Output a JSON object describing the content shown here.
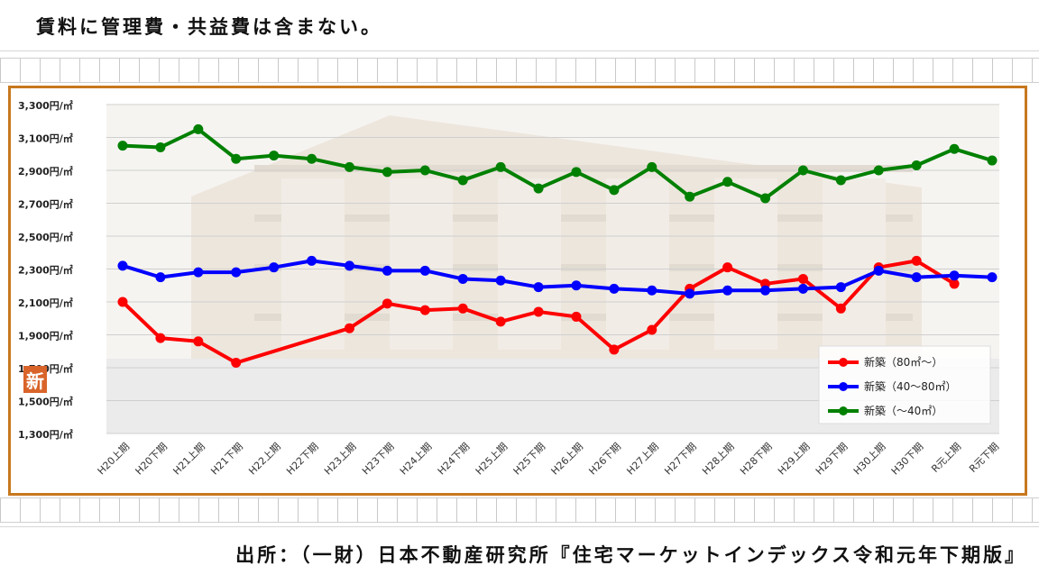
{
  "header_note": "賃料に管理費・共益費は含まない。",
  "source_text": "出所：（一財）日本不動産研究所『住宅マーケットインデックス令和元年下期版』",
  "badge_text": "新",
  "colors": {
    "frame": "#c8781e",
    "red": "#ff0000",
    "blue": "#0000ff",
    "green": "#008000"
  },
  "chart_data": {
    "type": "line",
    "title": "",
    "xlabel": "",
    "ylabel": "",
    "ylim": [
      1300,
      3300
    ],
    "yticks": [
      1300,
      1500,
      1700,
      1900,
      2100,
      2300,
      2500,
      2700,
      2900,
      3100,
      3300
    ],
    "ytick_labels": [
      "1,300円/㎡",
      "1,500円/㎡",
      "1,700円/㎡",
      "1,900円/㎡",
      "2,100円/㎡",
      "2,300円/㎡",
      "2,500円/㎡",
      "2,700円/㎡",
      "2,900円/㎡",
      "3,100円/㎡",
      "3,300円/㎡"
    ],
    "categories": [
      "H20上期",
      "H20下期",
      "H21上期",
      "H21下期",
      "H22上期",
      "H22下期",
      "H23上期",
      "H23下期",
      "H24上期",
      "H24下期",
      "H25上期",
      "H25下期",
      "H26上期",
      "H26下期",
      "H27上期",
      "H27下期",
      "H28上期",
      "H28下期",
      "H29上期",
      "H29下期",
      "H30上期",
      "H30下期",
      "R元上期",
      "R元下期"
    ],
    "legend_position": "bottom-right",
    "series": [
      {
        "name": "新築（80㎡～）",
        "color": "#ff0000",
        "values": [
          2100,
          1880,
          1860,
          1730,
          null,
          null,
          1940,
          2090,
          2050,
          2060,
          1980,
          2040,
          2010,
          1810,
          1930,
          2180,
          2310,
          2210,
          2240,
          2060,
          2310,
          2350,
          2210,
          null
        ]
      },
      {
        "name": "新築（40～80㎡）",
        "color": "#0000ff",
        "values": [
          2320,
          2250,
          2280,
          2280,
          2310,
          2350,
          2320,
          2290,
          2290,
          2240,
          2230,
          2190,
          2200,
          2180,
          2170,
          2150,
          2170,
          2170,
          2180,
          2190,
          2290,
          2250,
          2260,
          2250
        ]
      },
      {
        "name": "新築（～40㎡）",
        "color": "#008000",
        "values": [
          3050,
          3040,
          3150,
          2970,
          2990,
          2970,
          2920,
          2890,
          2900,
          2840,
          2920,
          2790,
          2890,
          2780,
          2920,
          2740,
          2830,
          2730,
          2900,
          2840,
          2900,
          2930,
          3030,
          2960
        ]
      }
    ]
  }
}
